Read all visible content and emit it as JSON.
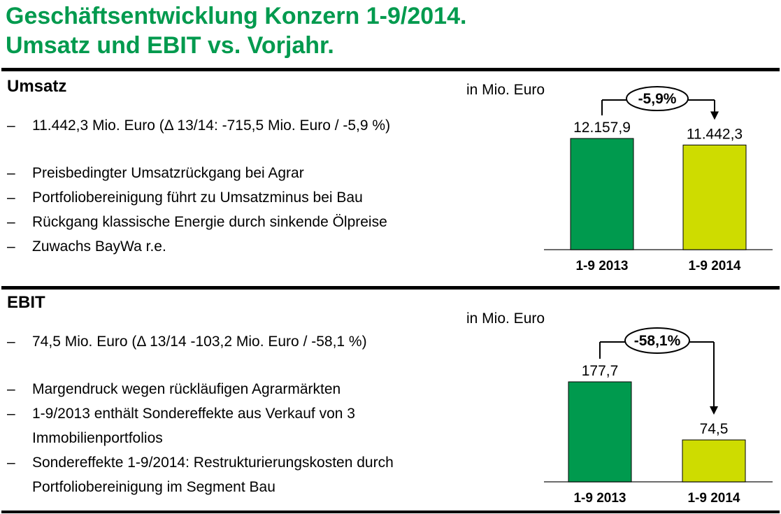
{
  "title": {
    "line1": "Geschäftsentwicklung Konzern 1-9/2014.",
    "line2": "Umsatz und EBIT vs. Vorjahr."
  },
  "colors": {
    "brand_green": "#009a4e",
    "accent_yellow": "#cedc00",
    "line_black": "#000000",
    "axis_gray": "#3c3c3c"
  },
  "ui": {
    "bullet_marker": "–"
  },
  "sections": [
    {
      "id": "umsatz",
      "heading": "Umsatz",
      "bullets": [
        "11.442,3 Mio. Euro (Δ 13/14: -715,5 Mio. Euro / -5,9 %)",
        "Preisbedingter Umsatzrückgang bei Agrar",
        "Portfoliobereinigung führt zu Umsatzminus bei Bau",
        "Rückgang klassische Energie durch sinkende Ölpreise",
        "Zuwachs BayWa r.e."
      ]
    },
    {
      "id": "ebit",
      "heading": "EBIT",
      "bullets": [
        "74,5 Mio. Euro (Δ 13/14 -103,2 Mio. Euro / -58,1 %)",
        "Margendruck wegen rückläufigen Agrarmärkten",
        "1-9/2013 enthält Sondereffekte aus Verkauf von 3 Immobilienportfolios",
        "Sondereffekte 1-9/2014: Restrukturierungskosten durch Portfoliobereinigung im Segment Bau"
      ]
    }
  ],
  "chart_data": [
    {
      "type": "bar",
      "title": "Umsatz",
      "unit_label": "in Mio. Euro",
      "categories": [
        "1-9 2013",
        "1-9 2014"
      ],
      "values": [
        12157.9,
        11442.3
      ],
      "value_labels": [
        "12.157,9",
        "11.442,3"
      ],
      "delta_label": "-5,9%",
      "bar_colors": [
        "#009a4e",
        "#cedc00"
      ],
      "ylim": [
        0,
        12157.9
      ],
      "grid": false,
      "legend": "none"
    },
    {
      "type": "bar",
      "title": "EBIT",
      "unit_label": "in Mio. Euro",
      "categories": [
        "1-9 2013",
        "1-9 2014"
      ],
      "values": [
        177.7,
        74.5
      ],
      "value_labels": [
        "177,7",
        "74,5"
      ],
      "delta_label": "-58,1%",
      "bar_colors": [
        "#009a4e",
        "#cedc00"
      ],
      "ylim": [
        0,
        177.7
      ],
      "grid": false,
      "legend": "none"
    }
  ]
}
